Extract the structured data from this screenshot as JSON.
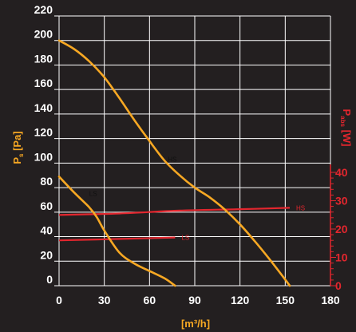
{
  "chart_data": {
    "type": "line",
    "xlabel": "[m³/h]",
    "ylabel_main": "P",
    "ylabel_sub": "s",
    "ylabel_unit": " [Pa]",
    "y2label_main": "P",
    "y2label_sub": "abs",
    "y2label_unit": " [W]",
    "xlim": [
      0,
      180
    ],
    "ylim": [
      0,
      220
    ],
    "y2lim": [
      0,
      40
    ],
    "x_ticks": [
      "0",
      "30",
      "60",
      "90",
      "120",
      "150",
      "180"
    ],
    "y_ticks": [
      "0",
      "20",
      "40",
      "60",
      "80",
      "100",
      "120",
      "140",
      "160",
      "180",
      "200",
      "220"
    ],
    "y2_ticks": [
      "0",
      "10",
      "20",
      "30",
      "40"
    ],
    "grid": true,
    "pressure_series": [
      {
        "name": "HS",
        "x": [
          0,
          10,
          20,
          30,
          40,
          50,
          60,
          70,
          80,
          90,
          100,
          110,
          120,
          130,
          140,
          150,
          153
        ],
        "y": [
          200,
          193,
          183,
          170,
          153,
          135,
          118,
          102,
          90,
          80,
          72,
          62,
          50,
          36,
          21,
          5,
          0
        ]
      },
      {
        "name": "LS",
        "x": [
          0,
          10,
          20,
          25,
          30,
          40,
          50,
          60,
          70,
          77
        ],
        "y": [
          89,
          76,
          64,
          56,
          45,
          27,
          18,
          12,
          6,
          0
        ]
      }
    ],
    "power_series": [
      {
        "name": "HS",
        "x": [
          0,
          40,
          80,
          120,
          153
        ],
        "y": [
          25,
          25.5,
          26.5,
          27,
          27.5
        ]
      },
      {
        "name": "LS",
        "x": [
          0,
          40,
          77
        ],
        "y": [
          16,
          16.5,
          17
        ]
      }
    ]
  },
  "colors": {
    "background": "#231f20",
    "grid": "#ffffff",
    "pressure_curve": "#f7a823",
    "power_curve": "#e3262e",
    "tick_text": "#ffffff",
    "secondary_axis": "#e3262e"
  }
}
